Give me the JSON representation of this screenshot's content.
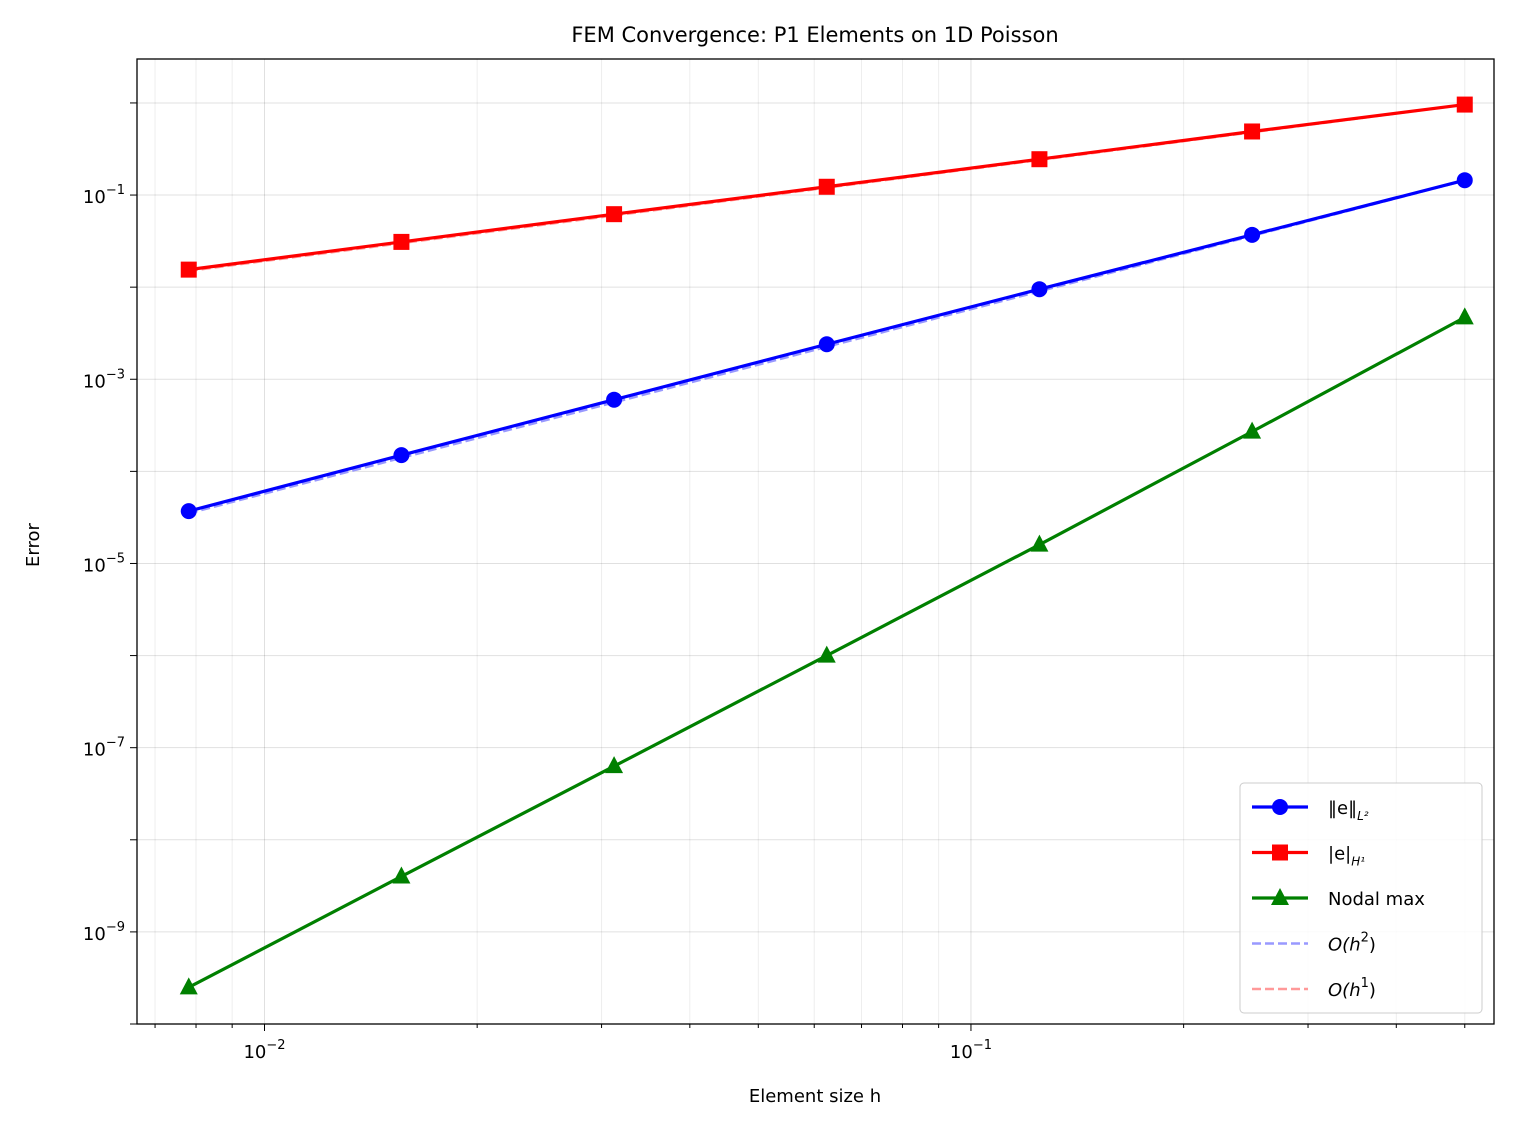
{
  "chart_data": {
    "type": "line",
    "title": "FEM Convergence: P1 Elements on 1D Poisson",
    "xlabel": "Element size h",
    "ylabel": "Error",
    "xscale": "log",
    "yscale": "log",
    "xlim": [
      0.0066,
      0.55
    ],
    "ylim": [
      1e-10,
      3.0
    ],
    "grid": true,
    "legend_position": "lower-right",
    "x": [
      0.0078125,
      0.015625,
      0.03125,
      0.0625,
      0.125,
      0.25,
      0.5
    ],
    "series": [
      {
        "key": "l2",
        "name": "‖e‖",
        "sub": "L²",
        "color": "#0000ff",
        "marker": "circle",
        "style": "solid",
        "values": [
          3.7e-05,
          0.00015,
          0.0006,
          0.0024,
          0.0095,
          0.037,
          0.145
        ]
      },
      {
        "key": "h1",
        "name": "|e|",
        "sub": "H¹",
        "color": "#ff0000",
        "marker": "square",
        "style": "solid",
        "values": [
          0.0155,
          0.031,
          0.062,
          0.123,
          0.245,
          0.49,
          0.96
        ]
      },
      {
        "key": "nodal",
        "name": "Nodal max",
        "color": "#008000",
        "marker": "triangle",
        "style": "solid",
        "values": [
          2.5e-10,
          4e-09,
          6.3e-08,
          1e-06,
          1.6e-05,
          0.00027,
          0.0047
        ]
      },
      {
        "key": "ref2",
        "name": "O(h",
        "sup": "2",
        "close": ")",
        "color": "#9999ff",
        "style": "dashed",
        "values": [
          3.5e-05,
          0.00014,
          0.00056,
          0.00225,
          0.009,
          0.036,
          0.144
        ]
      },
      {
        "key": "ref1",
        "name": "O(h",
        "sup": "1",
        "close": ")",
        "color": "#ff9999",
        "style": "dashed",
        "values": [
          0.015,
          0.03,
          0.06,
          0.12,
          0.24,
          0.48,
          0.96
        ]
      }
    ],
    "xticks": [
      {
        "base": "10",
        "exp": "−2",
        "value": 0.01
      },
      {
        "base": "10",
        "exp": "−1",
        "value": 0.1
      }
    ],
    "yticks": [
      {
        "base": "10",
        "exp": "−9",
        "value": 1e-09
      },
      {
        "base": "10",
        "exp": "−7",
        "value": 1e-07
      },
      {
        "base": "10",
        "exp": "−5",
        "value": 1e-05
      },
      {
        "base": "10",
        "exp": "−3",
        "value": 0.001
      },
      {
        "base": "10",
        "exp": "−1",
        "value": 0.1
      }
    ]
  }
}
